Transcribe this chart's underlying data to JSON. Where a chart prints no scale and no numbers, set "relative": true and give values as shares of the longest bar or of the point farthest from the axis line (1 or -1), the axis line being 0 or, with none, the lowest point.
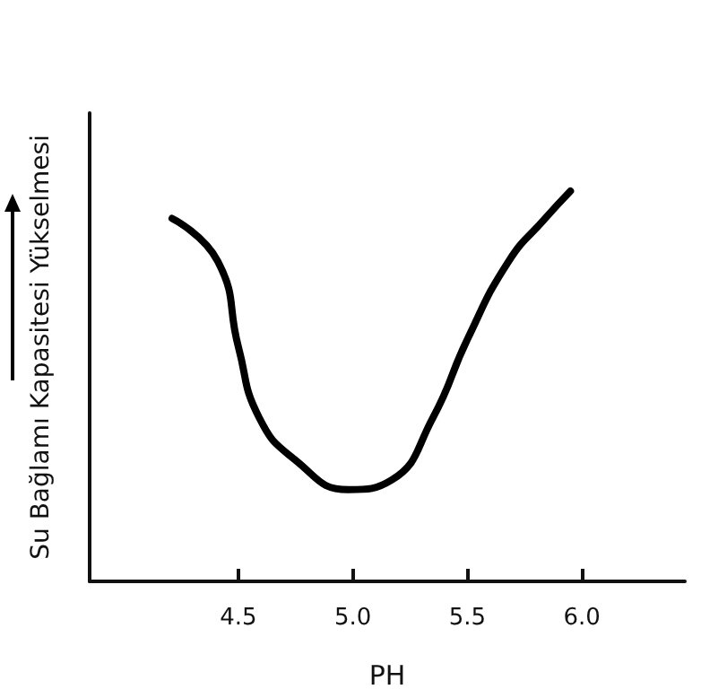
{
  "chart_data": {
    "type": "line",
    "xlabel": "PH",
    "ylabel": "Su Bağlamı Kapasitesi Yükselmesi",
    "relative": true,
    "x": [
      4.21,
      4.41,
      4.5,
      4.59,
      4.75,
      4.98,
      5.17,
      5.35,
      5.5,
      5.68,
      5.84,
      5.95
    ],
    "series": [
      {
        "color": "#000000",
        "values": [
          0.93,
          0.82,
          0.6,
          0.42,
          0.31,
          0.235,
          0.26,
          0.42,
          0.62,
          0.82,
          0.93,
          1.0
        ]
      }
    ],
    "xlim": [
      3.85,
      6.45
    ],
    "xticks": [
      4.5,
      {
        "value": 5,
        "label": "5.0"
      },
      5.5,
      {
        "value": 6,
        "label": "6.0"
      }
    ],
    "marker": "none",
    "line_style": "solid",
    "grid": false
  }
}
